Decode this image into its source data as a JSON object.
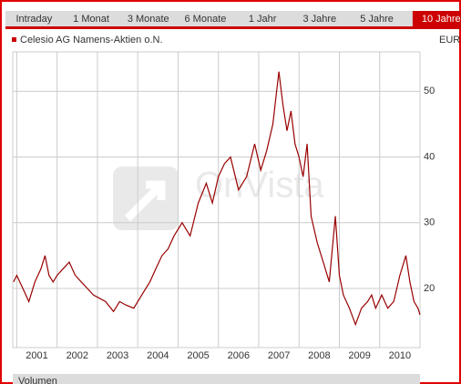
{
  "tabs": [
    "Intraday",
    "1 Monat",
    "3 Monate",
    "6 Monate",
    "1 Jahr",
    "3 Jahre",
    "5 Jahre",
    "10 Jahre"
  ],
  "active_tab": 7,
  "watermark": "OnVista",
  "volume_label": "Volumen",
  "chart_data": {
    "type": "line",
    "series": [
      {
        "name": "Celesio AG Namens-Aktien o.N.",
        "color": "#990000",
        "x": [
          2000.92,
          2001.0,
          2001.15,
          2001.3,
          2001.45,
          2001.6,
          2001.7,
          2001.8,
          2001.9,
          2002.0,
          2002.15,
          2002.3,
          2002.45,
          2002.6,
          2002.75,
          2002.9,
          2003.05,
          2003.2,
          2003.4,
          2003.55,
          2003.7,
          2003.9,
          2004.1,
          2004.3,
          2004.45,
          2004.6,
          2004.75,
          2004.9,
          2005.1,
          2005.3,
          2005.5,
          2005.7,
          2005.85,
          2006.0,
          2006.15,
          2006.3,
          2006.5,
          2006.7,
          2006.9,
          2007.05,
          2007.2,
          2007.35,
          2007.5,
          2007.6,
          2007.7,
          2007.8,
          2007.9,
          2008.0,
          2008.1,
          2008.2,
          2008.3,
          2008.45,
          2008.6,
          2008.75,
          2008.9,
          2009.0,
          2009.1,
          2009.25,
          2009.4,
          2009.55,
          2009.7,
          2009.8,
          2009.9,
          2010.05,
          2010.2,
          2010.35,
          2010.5,
          2010.65,
          2010.75,
          2010.85,
          2010.95,
          2011.0
        ],
        "values": [
          21,
          22,
          20,
          18,
          21,
          23,
          25,
          22,
          21,
          22,
          23,
          24,
          22,
          21,
          20,
          19,
          18.5,
          18,
          16.5,
          18,
          17.5,
          17,
          19,
          21,
          23,
          25,
          26,
          28,
          30,
          28,
          33,
          36,
          33,
          37,
          39,
          40,
          35,
          37,
          42,
          38,
          41,
          45,
          53,
          48,
          44,
          47,
          42,
          40,
          37,
          42,
          31,
          27,
          24,
          21,
          31,
          22,
          19,
          17,
          14.5,
          17,
          18,
          19,
          17,
          19,
          17,
          18,
          22,
          25,
          21,
          18,
          17,
          16
        ]
      }
    ],
    "ylim": [
      11,
      56
    ],
    "yticks": [
      20,
      30,
      40,
      50
    ],
    "xlim": [
      2000.9,
      2011.0
    ],
    "xticks": [
      2001,
      2002,
      2003,
      2004,
      2005,
      2006,
      2007,
      2008,
      2009,
      2010
    ],
    "unit": "EUR",
    "grid": true
  }
}
